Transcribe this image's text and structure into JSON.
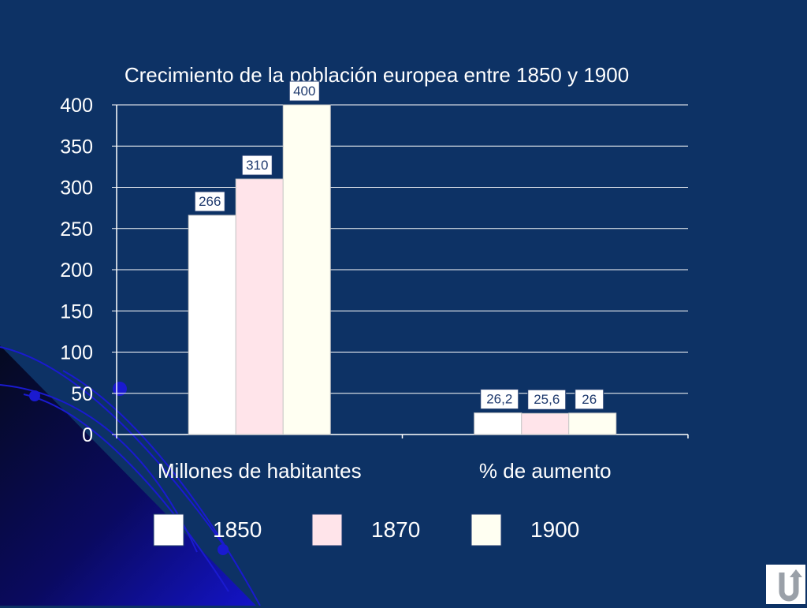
{
  "chart_data": {
    "type": "bar",
    "title": "Crecimiento de la población europea entre 1850 y 1900",
    "categories": [
      "Millones de habitantes",
      "% de aumento"
    ],
    "series": [
      {
        "name": "1850",
        "values": [
          266,
          26.2
        ],
        "labels": [
          "266",
          "26,2"
        ],
        "color": "#ffffff"
      },
      {
        "name": "1870",
        "values": [
          310,
          25.6
        ],
        "labels": [
          "310",
          "25,6"
        ],
        "color": "#ffe4ea"
      },
      {
        "name": "1900",
        "values": [
          400,
          26
        ],
        "labels": [
          "400",
          "26"
        ],
        "color": "#fffff2"
      }
    ],
    "yticks": [
      0,
      50,
      100,
      150,
      200,
      250,
      300,
      350,
      400
    ],
    "ylim": [
      0,
      400
    ],
    "grid": true,
    "legend": "bottom"
  },
  "colors": {
    "background": "#0d3265",
    "axis": "#ffffff",
    "label_box_fill": "#ffffff",
    "label_box_text": "#1f3a6e",
    "deco_dark": "#050a20",
    "deco_blue": "#1414c8"
  },
  "nav": {
    "back_icon": "return-arrow-icon"
  }
}
